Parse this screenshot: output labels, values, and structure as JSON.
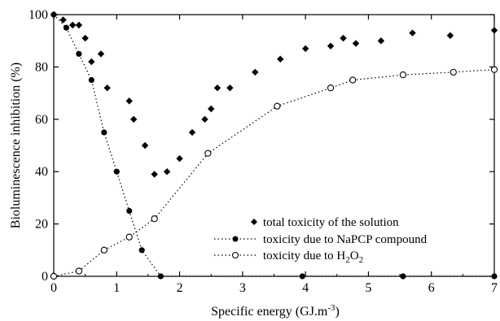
{
  "chart_data": {
    "type": "scatter",
    "xlabel": "Specific energy  (GJ.m",
    "xlabel_sup": "-3",
    "xlabel_end": ")",
    "ylabel": "Bioluminescence inhibition (%)",
    "xlim": [
      0,
      7
    ],
    "ylim": [
      0,
      100
    ],
    "x_ticks": [
      0,
      1,
      2,
      3,
      4,
      5,
      6,
      7
    ],
    "y_ticks": [
      0,
      20,
      40,
      60,
      80,
      100
    ],
    "grid": false,
    "legend_position": "bottom-right",
    "series": [
      {
        "name": "total toxicity of the solution",
        "marker": "diamond",
        "line": "none",
        "points": [
          [
            0.0,
            100
          ],
          [
            0.15,
            98
          ],
          [
            0.3,
            96
          ],
          [
            0.4,
            96
          ],
          [
            0.5,
            91
          ],
          [
            0.6,
            82
          ],
          [
            0.75,
            85
          ],
          [
            0.85,
            72
          ],
          [
            1.2,
            67
          ],
          [
            1.27,
            60
          ],
          [
            1.45,
            50
          ],
          [
            1.6,
            39
          ],
          [
            1.8,
            40
          ],
          [
            2.0,
            45
          ],
          [
            2.2,
            55
          ],
          [
            2.4,
            60
          ],
          [
            2.5,
            64
          ],
          [
            2.6,
            72
          ],
          [
            2.8,
            72
          ],
          [
            3.2,
            78
          ],
          [
            3.6,
            83
          ],
          [
            4.0,
            87
          ],
          [
            4.4,
            88
          ],
          [
            4.6,
            91
          ],
          [
            4.8,
            89
          ],
          [
            5.2,
            90
          ],
          [
            5.7,
            93
          ],
          [
            6.3,
            92
          ],
          [
            7.0,
            94
          ]
        ]
      },
      {
        "name": "toxicity due to NaPCP compound",
        "marker": "filled-circle",
        "line": "dotted",
        "points": [
          [
            0.0,
            100
          ],
          [
            0.2,
            95
          ],
          [
            0.4,
            85
          ],
          [
            0.6,
            75
          ],
          [
            0.8,
            55
          ],
          [
            1.0,
            40
          ],
          [
            1.2,
            25
          ],
          [
            1.4,
            10
          ],
          [
            1.7,
            0
          ],
          [
            3.95,
            0
          ],
          [
            5.55,
            0
          ],
          [
            7.0,
            0
          ]
        ]
      },
      {
        "name_prefix": "toxicity due to H",
        "name_sub1": "2",
        "name_mid": "O",
        "name_sub2": "2",
        "marker": "open-circle",
        "line": "dotted",
        "points": [
          [
            0.0,
            0
          ],
          [
            0.4,
            2
          ],
          [
            0.8,
            10
          ],
          [
            1.2,
            15
          ],
          [
            1.6,
            22
          ],
          [
            2.45,
            47
          ],
          [
            3.55,
            65
          ],
          [
            4.4,
            72
          ],
          [
            4.75,
            75
          ],
          [
            5.55,
            77
          ],
          [
            6.35,
            78
          ],
          [
            7.0,
            79
          ]
        ]
      }
    ]
  }
}
